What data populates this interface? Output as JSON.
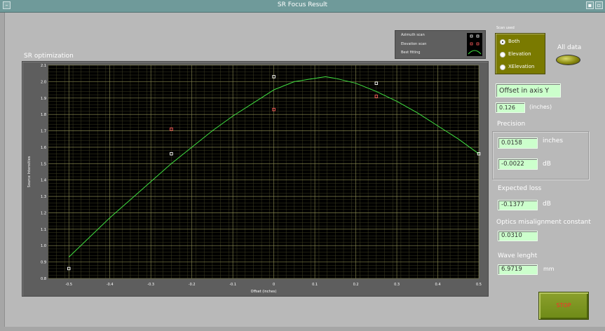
{
  "window": {
    "title": "SR Focus Result"
  },
  "plot": {
    "title": "SR optimization",
    "xlabel": "Offset (inches)",
    "ylabel": "Source Intensities"
  },
  "legend": {
    "items": [
      {
        "label": "Azimuth scan",
        "color": "#ffffff"
      },
      {
        "label": "Elevation scan",
        "color": "#ff5a5a"
      },
      {
        "label": "Best fitting",
        "color": "#40e040"
      }
    ]
  },
  "scan_used": {
    "label": "Scan used",
    "options": [
      "Both",
      "Elevation",
      "XElevation"
    ],
    "selected": "Both"
  },
  "all_data": {
    "label": "All data"
  },
  "offset_y": {
    "title": "Offset in axis Y",
    "value": "0.126",
    "unit": "(inches)"
  },
  "precision": {
    "label": "Precision",
    "value1": "0.0158",
    "unit1": "inches",
    "value2": "-0.0022",
    "unit2": "dB"
  },
  "expected_loss": {
    "label": "Expected loss",
    "value": "-0.1377",
    "unit": "dB"
  },
  "optics": {
    "label": "Optics misalignment constant",
    "value": "0.0310"
  },
  "wave": {
    "label": "Wave lenght",
    "value": "6.9719",
    "unit": "mm"
  },
  "stop": {
    "label": "STOP"
  },
  "colors": {
    "plot_bg": "#000000",
    "grid_major": "#8c8c52",
    "grid_minor": "#3d3d22",
    "fit_line": "#40e040",
    "azimuth": "#ffffff",
    "elevation": "#ff5a5a",
    "value_box": "#ccffcc",
    "scan_panel": "#7a7a00"
  },
  "chart_data": {
    "type": "scatter",
    "title": "SR optimization",
    "xlabel": "Offset (inches)",
    "ylabel": "Source Intensities",
    "xlim": [
      -0.55,
      0.5
    ],
    "ylim": [
      0.8,
      2.1
    ],
    "x_ticks": [
      -0.5,
      -0.4,
      -0.3,
      -0.2,
      -0.1,
      0,
      0.1,
      0.2,
      0.3,
      0.4,
      0.5
    ],
    "y_ticks": [
      0.8,
      0.9,
      1.0,
      1.1,
      1.2,
      1.3,
      1.4,
      1.5,
      1.6,
      1.7,
      1.8,
      1.9,
      2.0,
      2.1
    ],
    "x_tick_labels": [
      "-0.5",
      "-0.4",
      "-0.3",
      "-0.2",
      "-0.1",
      "0",
      "0.1",
      "0.2",
      "0.3",
      "0.4",
      "0.5"
    ],
    "y_tick_labels": [
      "0.8",
      "0.9",
      "1.0",
      "1.1",
      "1.2",
      "1.3",
      "1.4",
      "1.5",
      "1.6",
      "1.7",
      "1.8",
      "1.9",
      "2.0",
      "2.1"
    ],
    "grid": true,
    "series": [
      {
        "name": "Azimuth scan",
        "kind": "markers",
        "points": [
          [
            -0.5,
            0.86
          ],
          [
            -0.25,
            1.56
          ],
          [
            0,
            2.03
          ],
          [
            0.25,
            1.99
          ],
          [
            0.5,
            1.56
          ]
        ]
      },
      {
        "name": "Elevation scan",
        "kind": "markers",
        "points": [
          [
            -0.25,
            1.71
          ],
          [
            0,
            1.83
          ],
          [
            0.25,
            1.91
          ]
        ]
      },
      {
        "name": "Best fitting",
        "kind": "line",
        "points": [
          [
            -0.5,
            0.93
          ],
          [
            -0.45,
            1.05
          ],
          [
            -0.4,
            1.17
          ],
          [
            -0.35,
            1.28
          ],
          [
            -0.3,
            1.39
          ],
          [
            -0.25,
            1.5
          ],
          [
            -0.2,
            1.6
          ],
          [
            -0.15,
            1.7
          ],
          [
            -0.1,
            1.79
          ],
          [
            -0.05,
            1.87
          ],
          [
            0,
            1.95
          ],
          [
            0.05,
            2.0
          ],
          [
            0.1,
            2.02
          ],
          [
            0.126,
            2.03
          ],
          [
            0.15,
            2.02
          ],
          [
            0.2,
            1.99
          ],
          [
            0.25,
            1.94
          ],
          [
            0.3,
            1.88
          ],
          [
            0.35,
            1.81
          ],
          [
            0.4,
            1.73
          ],
          [
            0.45,
            1.65
          ],
          [
            0.5,
            1.56
          ]
        ]
      }
    ]
  }
}
